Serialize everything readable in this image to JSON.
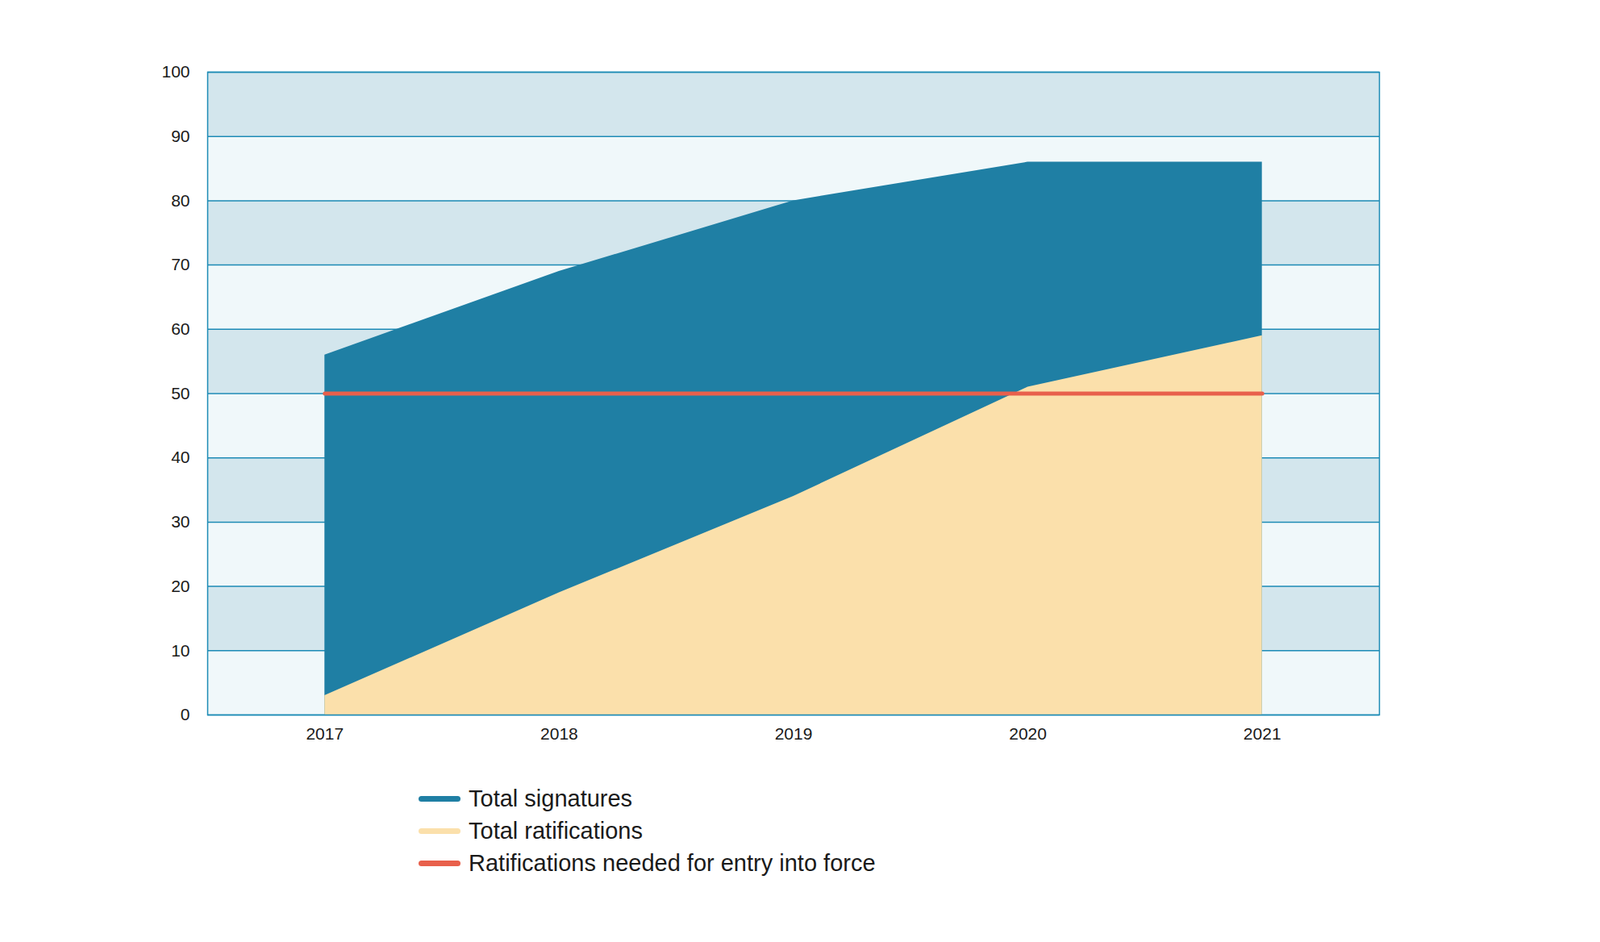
{
  "chart_data": {
    "type": "area",
    "x": [
      2017,
      2018,
      2019,
      2020,
      2021
    ],
    "xlim": [
      2016.5,
      2021.5
    ],
    "xticks": [
      2017,
      2018,
      2019,
      2020,
      2021
    ],
    "ylim": [
      0,
      100
    ],
    "yticks": [
      0,
      10,
      20,
      30,
      40,
      50,
      60,
      70,
      80,
      90,
      100
    ],
    "grid": true,
    "stacked": false,
    "series": [
      {
        "name": "Total signatures",
        "type": "area",
        "color": "#1f7fa4",
        "values": [
          56,
          69,
          80,
          86,
          86
        ]
      },
      {
        "name": "Total ratifications",
        "type": "area",
        "color": "#fbe0ab",
        "values": [
          3,
          19,
          34,
          51,
          59
        ]
      },
      {
        "name": "Ratifications needed for entry into force",
        "type": "line",
        "color": "#e8604c",
        "values": [
          50,
          50,
          50,
          50,
          50
        ]
      }
    ]
  }
}
